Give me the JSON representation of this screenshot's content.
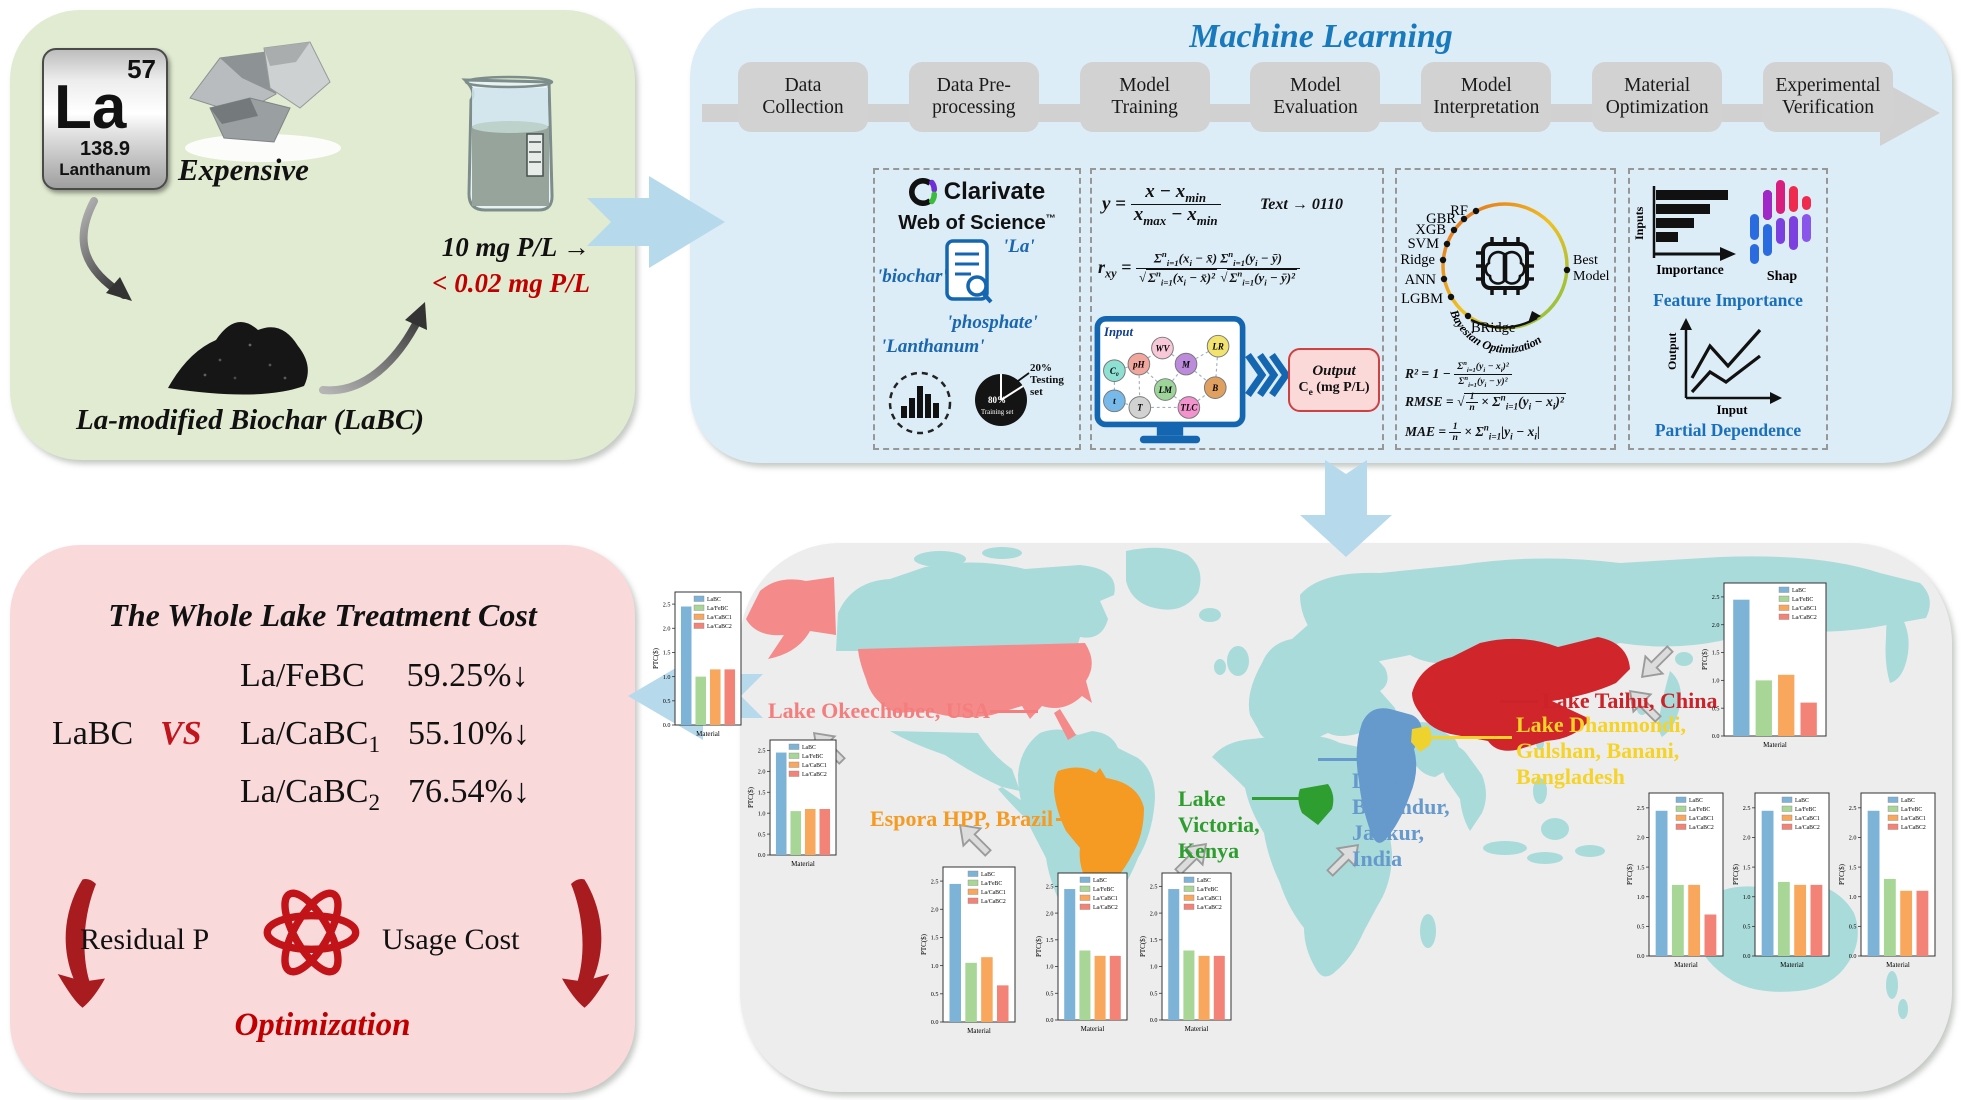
{
  "material": {
    "element_number": "57",
    "element_symbol": "La",
    "element_mass": "138.9",
    "element_name": "Lanthanum",
    "expensive": "Expensive",
    "influent": "10 mg P/L →",
    "effluent": "< 0.02 mg P/L",
    "product": "La-modified Biochar (LaBC)"
  },
  "ml": {
    "title": "Machine Learning",
    "steps": [
      [
        "Data",
        "Collection"
      ],
      [
        "Data Pre-",
        "processing"
      ],
      [
        "Model",
        "Training"
      ],
      [
        "Model",
        "Evaluation"
      ],
      [
        "Model",
        "Interpretation"
      ],
      [
        "Material",
        "Optimization"
      ],
      [
        "Experimental",
        "Verification"
      ]
    ],
    "collection": {
      "brand": "Clarivate",
      "product": "Web of Science",
      "tm": "™",
      "kw_la": "'La'",
      "kw_biochar": "'biochar'",
      "kw_phosphate": "'phosphate'",
      "kw_lanthanum": "'Lanthanum'",
      "testing": "20%\nTesting\nset",
      "training_pct": "80%",
      "training": "Training set"
    },
    "preprocess": {
      "formula_norm": "y = <span class='fr'><span>x − x<sub>min</sub></span><span>x<sub>max</sub> − x<sub>min</sub></span></span>",
      "text_encoding": "Text → 0110",
      "formula_pearson": "r<sub>xy</sub> = <span class='fr fs'><span>Σ<sup>n</sup><sub>i=1</sub>(x<sub>i</sub> − x̄) Σ<sup>n</sup><sub>i=1</sub>(y<sub>i</sub> − ȳ)</span><span>√<span class='rad'>Σ<sup>n</sup><sub>i=1</sub>(x<sub>i</sub> − x̄)²</span> √<span class='rad'>Σ<sup>n</sup><sub>i=1</sub>(y<sub>i</sub> − ȳ)²</span></span></span>",
      "input_label": "Input",
      "nodes": [
        "C₀",
        "pH",
        "WV",
        "M",
        "LR",
        "LM",
        "B",
        "t",
        "T",
        "TLC"
      ],
      "output_label": "Output",
      "output_value": "C<sub>e</sub> (mg P/L)"
    },
    "evaluation": {
      "models": [
        "RF",
        "GBR",
        "XGB",
        "SVM",
        "Ridge",
        "ANN",
        "LGBM",
        "BRidge"
      ],
      "best1": "Best",
      "best2": "Model",
      "bayesian": "Bayesian Optimization",
      "formula_r2": "R² = 1 − <span class='fr fs'><span>Σ<sup>n</sup><sub>i=1</sub>(y<sub>i</sub> − x<sub>i</sub>)²</span><span>Σ<sup>n</sup><sub>i=1</sub>(y<sub>i</sub> − y)²</span></span>",
      "formula_rmse": "RMSE = √<span class='rad'><span class='fr fs'><span>1</span><span>n</span></span> × Σ<sup>n</sup><sub>i=1</sub>(y<sub>i</sub> − x<sub>i</sub>)²</span>",
      "formula_mae": "MAE = <span class='fr fs'><span>1</span><span>n</span></span> × Σ<sup>n</sup><sub>i=1</sub>|y<sub>i</sub> − x<sub>i</sub>|"
    },
    "interpretation": {
      "inputs": "Inputs",
      "importance": "Importance",
      "shap": "Shap",
      "feature_importance": "Feature Importance",
      "output": "Output",
      "input": "Input",
      "partial_dependence": "Partial Dependence"
    }
  },
  "cost": {
    "title": "The Whole Lake Treatment Cost",
    "base": "LaBC",
    "vs": "VS",
    "rows": [
      {
        "name": "La/FeBC",
        "pct": "59.25%↓"
      },
      {
        "name": "La/CaBC<sub>1</sub>",
        "pct": "55.10%↓"
      },
      {
        "name": "La/CaBC<sub>2</sub>",
        "pct": "76.54%↓"
      }
    ],
    "residual": "Residual P",
    "usage": "Usage Cost",
    "optimization": "Optimization"
  },
  "map": {
    "labels": {
      "okeechobee": {
        "text": "Lake Okeechobee, USA",
        "color": "#f47d7d"
      },
      "espora": {
        "text": "Espora HPP, Brazil",
        "color": "#f59a23"
      },
      "victoria": {
        "text": "Lake\nVictoria,\nKenya",
        "color": "#2f9e30"
      },
      "bellandur": {
        "text": "Lake\nBellandur,\nJakkur,\nIndia",
        "color": "#6699cc"
      },
      "dhanmondi": {
        "text": "Lake Dhanmondi,\nGulshan, Banani,\nBangladesh",
        "color": "#f5d327"
      },
      "taihu": {
        "text": "Lake Taihu, China",
        "color": "#cc2229"
      }
    },
    "country_colors": {
      "land": "#a9dbda",
      "usa": "#f58a8a",
      "brazil": "#f59a23",
      "kenya": "#2f9e30",
      "india": "#6699cc",
      "bangladesh": "#f0d22e",
      "china": "#d0252b"
    }
  },
  "chart_data": {
    "type": "bar",
    "series": [
      "LaBC",
      "La/FeBC",
      "La/CaBC1",
      "La/CaBC2"
    ],
    "colors": [
      "#7eb3d8",
      "#a8d696",
      "#f9a75c",
      "#f28376"
    ],
    "yticks": [
      0,
      0.5,
      1,
      1.5,
      2,
      2.5
    ],
    "ylim": [
      0,
      2.75
    ],
    "ylabel": "PTC($)",
    "xlabel": "Material",
    "items": [
      {
        "location": "Lake Okeechobee, USA",
        "values": [
          2.45,
          1.0,
          1.15,
          1.15
        ]
      },
      {
        "location": "Espora HPP, Brazil",
        "values": [
          2.45,
          1.05,
          1.1,
          1.1
        ]
      },
      {
        "location": "Lake Victoria, Kenya",
        "values": [
          2.45,
          1.05,
          1.15,
          0.65
        ]
      },
      {
        "location": "Lake Bellandur, India",
        "values": [
          2.45,
          1.3,
          1.2,
          1.2
        ]
      },
      {
        "location": "Lake Jakkur, India",
        "values": [
          2.45,
          1.3,
          1.2,
          1.2
        ]
      },
      {
        "location": "Lake Dhanmondi, Bangladesh",
        "values": [
          2.45,
          1.2,
          1.2,
          0.7
        ]
      },
      {
        "location": "Lake Gulshan, Bangladesh",
        "values": [
          2.45,
          1.25,
          1.2,
          1.2
        ]
      },
      {
        "location": "Lake Banani, Bangladesh",
        "values": [
          2.45,
          1.3,
          1.1,
          1.1
        ]
      },
      {
        "location": "Lake Taihu, China",
        "values": [
          2.45,
          1.0,
          1.1,
          0.6
        ]
      }
    ]
  }
}
